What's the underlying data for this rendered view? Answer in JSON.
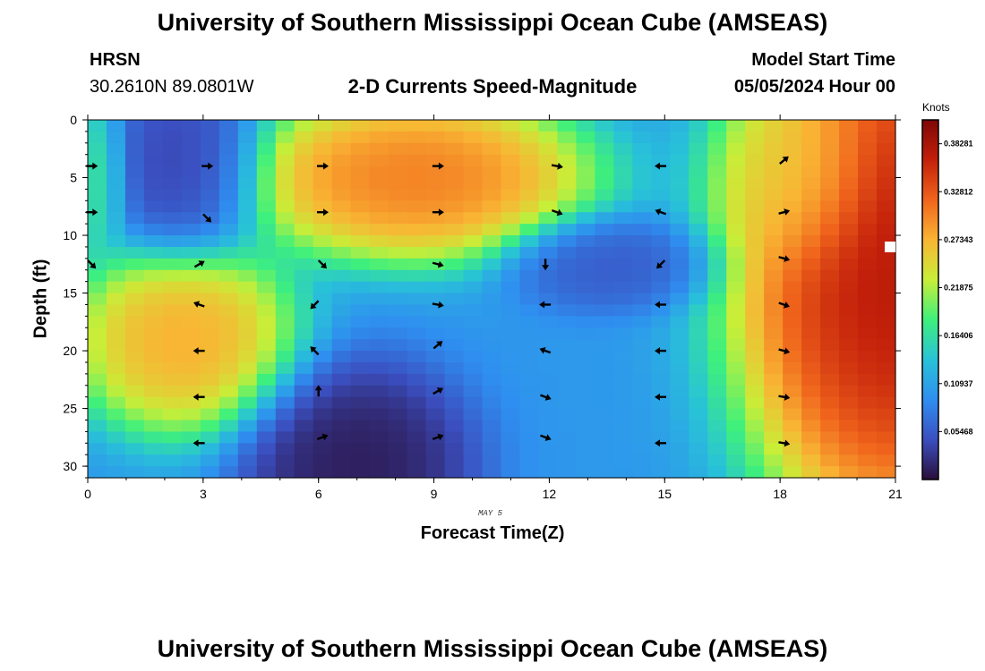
{
  "header": {
    "title": "University of Southern Mississippi Ocean Cube (AMSEAS)",
    "station_name": "HRSN",
    "station_coords": "30.2610N  89.0801W",
    "chart_subtitle": "2-D Currents Speed-Magnitude",
    "model_start_label": "Model Start Time",
    "model_start_value": "05/05/2024 Hour 00"
  },
  "footer": {
    "date_note": "MAY 5",
    "repeat_title": "University of Southern Mississippi Ocean Cube (AMSEAS)"
  },
  "colors": {
    "scale": [
      "#2a0e3a",
      "#3b4fc0",
      "#2f8ef0",
      "#28c2d8",
      "#3ef07c",
      "#c8ee38",
      "#f9b534",
      "#f0641c",
      "#c3200a",
      "#7e0606"
    ],
    "vector": "#000000"
  },
  "chart_data": {
    "type": "heatmap",
    "title": "2-D Currents Speed-Magnitude",
    "xlabel": "Forecast Time(Z)",
    "ylabel": "Depth (ft)",
    "x_ticks": [
      0,
      3,
      6,
      9,
      12,
      15,
      18,
      21
    ],
    "y_ticks": [
      0,
      5,
      10,
      15,
      20,
      25,
      30
    ],
    "xlim": [
      0,
      21
    ],
    "ylim": [
      0,
      31
    ],
    "y_inverted": true,
    "colorbar": {
      "title": "Knots",
      "min": 0.0,
      "max": 0.41,
      "tick_values": [
        0.05468,
        0.10937,
        0.16406,
        0.21875,
        0.27343,
        0.32812,
        0.38281
      ],
      "tick_labels": [
        "0.05468",
        "0.10937",
        "0.16406",
        "0.21875",
        "0.27343",
        "0.32812",
        "0.38281"
      ]
    },
    "speed_centers": [
      {
        "t": 2.5,
        "d": 4,
        "v": 0.03,
        "st": 1.0,
        "sd": 4.0
      },
      {
        "t": 2.5,
        "d": 19,
        "v": 0.3,
        "st": 1.4,
        "sd": 4.0
      },
      {
        "t": 8.5,
        "d": 5,
        "v": 0.33,
        "st": 2.2,
        "sd": 3.5
      },
      {
        "t": 7.0,
        "d": 30,
        "v": 0.0,
        "st": 1.5,
        "sd": 4.5
      },
      {
        "t": 13.5,
        "d": 12.5,
        "v": 0.05,
        "st": 1.3,
        "sd": 2.0
      },
      {
        "t": 21.0,
        "d": 13,
        "v": 0.41,
        "st": 2.0,
        "sd": 11.0
      },
      {
        "t": 18.5,
        "d": 5,
        "v": 0.25,
        "st": 1.0,
        "sd": 4.0
      },
      {
        "t": 0.0,
        "d": 5,
        "v": 0.18,
        "st": 0.5,
        "sd": 3.5
      }
    ],
    "vectors": [
      {
        "t": 0.1,
        "d": 4,
        "angle": 0
      },
      {
        "t": 0.1,
        "d": 8,
        "angle": 0
      },
      {
        "t": 0.1,
        "d": 12.5,
        "angle": 45
      },
      {
        "t": 3.1,
        "d": 4,
        "angle": 0
      },
      {
        "t": 3.1,
        "d": 8.5,
        "angle": 45
      },
      {
        "t": 2.9,
        "d": 12.5,
        "angle": -30
      },
      {
        "t": 2.9,
        "d": 16,
        "angle": 200
      },
      {
        "t": 2.9,
        "d": 20,
        "angle": 180
      },
      {
        "t": 2.9,
        "d": 24,
        "angle": 180
      },
      {
        "t": 2.9,
        "d": 28,
        "angle": 180
      },
      {
        "t": 6.1,
        "d": 4,
        "angle": 0
      },
      {
        "t": 6.1,
        "d": 8,
        "angle": 0
      },
      {
        "t": 6.1,
        "d": 12.5,
        "angle": 45
      },
      {
        "t": 5.9,
        "d": 16,
        "angle": 135
      },
      {
        "t": 5.9,
        "d": 20,
        "angle": 225
      },
      {
        "t": 6.0,
        "d": 23.5,
        "angle": 270
      },
      {
        "t": 6.1,
        "d": 27.5,
        "angle": -20
      },
      {
        "t": 9.1,
        "d": 4,
        "angle": 0
      },
      {
        "t": 9.1,
        "d": 8,
        "angle": 0
      },
      {
        "t": 9.1,
        "d": 12.5,
        "angle": 15
      },
      {
        "t": 9.1,
        "d": 16,
        "angle": 10
      },
      {
        "t": 9.1,
        "d": 19.5,
        "angle": -40
      },
      {
        "t": 9.1,
        "d": 23.5,
        "angle": -30
      },
      {
        "t": 9.1,
        "d": 27.5,
        "angle": -20
      },
      {
        "t": 12.2,
        "d": 4,
        "angle": 10
      },
      {
        "t": 12.2,
        "d": 8,
        "angle": 20
      },
      {
        "t": 11.9,
        "d": 12.5,
        "angle": 90
      },
      {
        "t": 11.9,
        "d": 16,
        "angle": 180
      },
      {
        "t": 11.9,
        "d": 20,
        "angle": 200
      },
      {
        "t": 11.9,
        "d": 24,
        "angle": 20
      },
      {
        "t": 11.9,
        "d": 27.5,
        "angle": 20
      },
      {
        "t": 14.9,
        "d": 4,
        "angle": 180
      },
      {
        "t": 14.9,
        "d": 8,
        "angle": 200
      },
      {
        "t": 14.9,
        "d": 12.5,
        "angle": 135
      },
      {
        "t": 14.9,
        "d": 16,
        "angle": 180
      },
      {
        "t": 14.9,
        "d": 20,
        "angle": 180
      },
      {
        "t": 14.9,
        "d": 24,
        "angle": 180
      },
      {
        "t": 14.9,
        "d": 28,
        "angle": 180
      },
      {
        "t": 18.1,
        "d": 3.5,
        "angle": -40
      },
      {
        "t": 18.1,
        "d": 8,
        "angle": -15
      },
      {
        "t": 18.1,
        "d": 12,
        "angle": 15
      },
      {
        "t": 18.1,
        "d": 16,
        "angle": 20
      },
      {
        "t": 18.1,
        "d": 20,
        "angle": 15
      },
      {
        "t": 18.1,
        "d": 24,
        "angle": 10
      },
      {
        "t": 18.1,
        "d": 28,
        "angle": 10
      }
    ]
  }
}
